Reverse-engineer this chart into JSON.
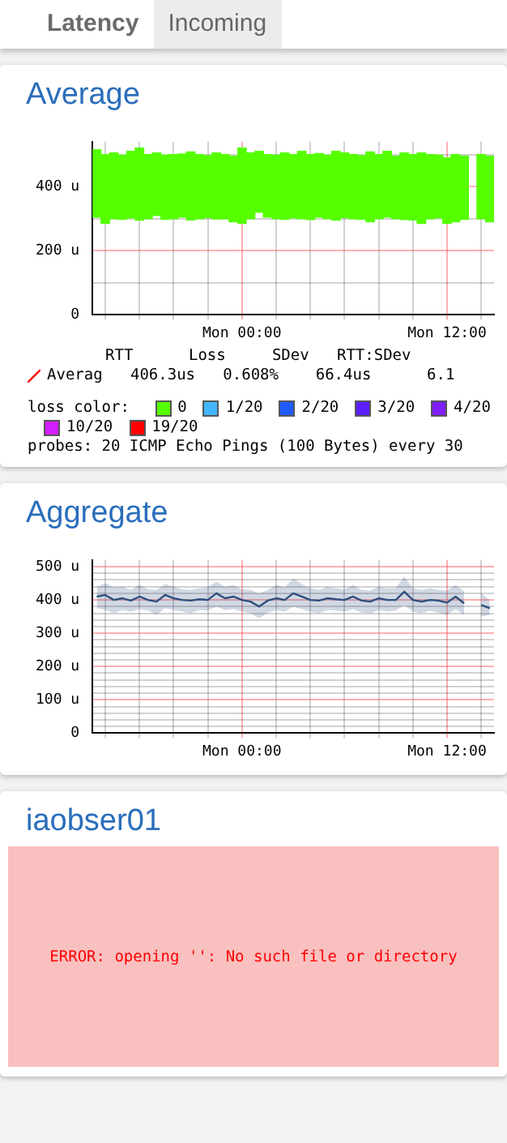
{
  "chart_data": [
    {
      "type": "other",
      "annotations": [
        "Latency",
        "Incoming"
      ]
    },
    {
      "type": "bar",
      "title": "Average",
      "color": "#55ff00",
      "categories": [
        null,
        null,
        null,
        null,
        null,
        null,
        null,
        null,
        null,
        null,
        null,
        null,
        null,
        null,
        null,
        null,
        null,
        "Mon 00:00",
        null,
        null,
        null,
        null,
        null,
        null,
        null,
        null,
        null,
        null,
        null,
        null,
        null,
        null,
        null,
        null,
        null,
        null,
        null,
        null,
        null,
        null,
        null,
        "Mon 12:00",
        null,
        null,
        null,
        null,
        null
      ],
      "base": [
        305,
        285,
        300,
        298,
        302,
        295,
        300,
        310,
        298,
        300,
        305,
        296,
        300,
        303,
        299,
        300,
        290,
        285,
        300,
        320,
        305,
        300,
        298,
        302,
        300,
        297,
        305,
        300,
        295,
        303,
        300,
        298,
        290,
        300,
        305,
        300,
        297,
        296,
        285,
        300,
        302,
        285,
        290,
        298,
        null,
        300,
        290
      ],
      "values": [
        210,
        215,
        205,
        200,
        208,
        225,
        200,
        195,
        200,
        200,
        197,
        212,
        200,
        194,
        206,
        200,
        205,
        235,
        205,
        190,
        195,
        198,
        207,
        198,
        210,
        203,
        198,
        198,
        215,
        202,
        200,
        199,
        218,
        200,
        205,
        195,
        208,
        204,
        220,
        200,
        196,
        205,
        210,
        197,
        null,
        200,
        205
      ],
      "ylim": [
        0,
        540
      ],
      "yticks": [
        0,
        {
          "value": 100,
          "label": null
        },
        {
          "value": 200,
          "label": "200 u"
        },
        {
          "value": 300,
          "label": null
        },
        {
          "value": 400,
          "label": "400 u"
        },
        {
          "value": 500,
          "label": null
        }
      ],
      "grid": true,
      "annotations": [
        "RTT      Loss     SDev   RTT:SDev",
        "Averag   406.3us   0.608%    66.4us      6.1",
        "loss color:",
        "0",
        "1/20",
        "2/20",
        "3/20",
        "4/20",
        "10/20",
        "19/20",
        "probes:  20 ICMP Echo Pings (100 Bytes) every 30"
      ]
    },
    {
      "type": "line",
      "title": "Aggregate",
      "categories": [
        null,
        null,
        null,
        null,
        null,
        null,
        null,
        null,
        null,
        null,
        null,
        null,
        null,
        null,
        null,
        null,
        null,
        "Mon 00:00",
        null,
        null,
        null,
        null,
        null,
        null,
        null,
        null,
        null,
        null,
        null,
        null,
        null,
        null,
        null,
        null,
        null,
        null,
        null,
        null,
        null,
        null,
        null,
        "Mon 12:00",
        null,
        null,
        null,
        null,
        null
      ],
      "series": [
        {
          "color": "#2f4f7f",
          "values": [
            410,
            415,
            400,
            405,
            398,
            410,
            400,
            395,
            415,
            405,
            400,
            398,
            402,
            400,
            420,
            405,
            410,
            400,
            395,
            380,
            398,
            405,
            400,
            420,
            410,
            400,
            398,
            405,
            402,
            400,
            410,
            398,
            395,
            405,
            400,
            400,
            425,
            400,
            395,
            400,
            398,
            392,
            410,
            390,
            null,
            385,
            375
          ],
          "lower": [
            375,
            370,
            360,
            370,
            365,
            372,
            368,
            355,
            375,
            370,
            365,
            360,
            370,
            368,
            380,
            370,
            372,
            365,
            360,
            345,
            362,
            370,
            365,
            380,
            372,
            365,
            360,
            370,
            368,
            365,
            372,
            362,
            360,
            370,
            365,
            368,
            385,
            365,
            360,
            368,
            362,
            355,
            372,
            355,
            null,
            350,
            355
          ],
          "upper": [
            440,
            450,
            438,
            440,
            430,
            445,
            432,
            430,
            448,
            440,
            432,
            430,
            435,
            438,
            455,
            440,
            445,
            432,
            430,
            420,
            430,
            445,
            438,
            465,
            448,
            435,
            430,
            440,
            435,
            432,
            445,
            430,
            428,
            440,
            435,
            436,
            470,
            435,
            430,
            435,
            430,
            428,
            445,
            425,
            null,
            420,
            400
          ]
        }
      ],
      "ylim": [
        0,
        520
      ],
      "yticks": [
        0,
        {
          "value": 20,
          "label": null
        },
        {
          "value": 40,
          "label": null
        },
        {
          "value": 60,
          "label": null
        },
        {
          "value": 80,
          "label": null
        },
        {
          "value": 100,
          "label": "100 u"
        },
        {
          "value": 120,
          "label": null
        },
        {
          "value": 140,
          "label": null
        },
        {
          "value": 160,
          "label": null
        },
        {
          "value": 180,
          "label": null
        },
        {
          "value": 200,
          "label": "200 u"
        },
        {
          "value": 220,
          "label": null
        },
        {
          "value": 240,
          "label": null
        },
        {
          "value": 260,
          "label": null
        },
        {
          "value": 280,
          "label": null
        },
        {
          "value": 300,
          "label": "300 u"
        },
        {
          "value": 320,
          "label": null
        },
        {
          "value": 340,
          "label": null
        },
        {
          "value": 360,
          "label": null
        },
        {
          "value": 380,
          "label": null
        },
        {
          "value": 400,
          "label": "400 u"
        },
        {
          "value": 420,
          "label": null
        },
        {
          "value": 440,
          "label": null
        },
        {
          "value": 460,
          "label": null
        },
        {
          "value": 480,
          "label": null
        },
        {
          "value": 500,
          "label": "500 u"
        }
      ],
      "grid": true
    },
    {
      "type": "other",
      "title": "iaobser01",
      "annotations": [
        "ERROR: opening '': No such file or directory"
      ]
    }
  ]
}
